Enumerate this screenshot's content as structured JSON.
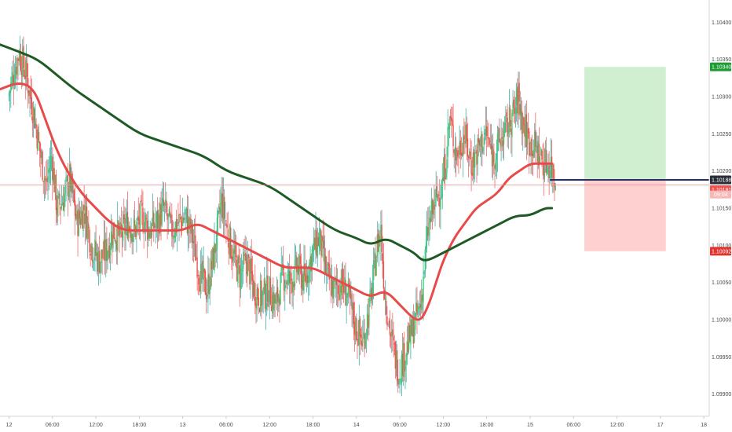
{
  "chart_data": {
    "type": "candlestick",
    "title": "",
    "xlabel": "",
    "ylabel": "",
    "colors": {
      "up": "#26a69a",
      "up_body": "#3fcf6c",
      "down": "#ef5350",
      "ma_fast": "#e84a4a",
      "ma_slow": "#1e5a24",
      "target_zone": "#c8ecc8",
      "stop_zone": "#ffc8c8",
      "entry_line": "#2a2e5c",
      "price_line": "#f08a8a",
      "target_tag": "#1e9a32",
      "stop_tag": "#e0342f",
      "entry_tag": "#2a2e39",
      "last_tag": "#ef5350"
    },
    "y_axis": {
      "ylim": [
        1.0987,
        1.1043
      ],
      "ticks": [
        "1.10400",
        "1.10350",
        "1.10300",
        "1.10250",
        "1.10200",
        "1.10150",
        "1.10100",
        "1.10050",
        "1.10000",
        "1.09950",
        "1.09900"
      ]
    },
    "x_axis": {
      "ticks": [
        {
          "label": "12",
          "x": 0
        },
        {
          "label": "06:00",
          "x": 24
        },
        {
          "label": "12:00",
          "x": 48
        },
        {
          "label": "18:00",
          "x": 72
        },
        {
          "label": "13",
          "x": 96
        },
        {
          "label": "06:00",
          "x": 120
        },
        {
          "label": "12:00",
          "x": 144
        },
        {
          "label": "18:00",
          "x": 168
        },
        {
          "label": "14",
          "x": 192
        },
        {
          "label": "06:00",
          "x": 216
        },
        {
          "label": "12:00",
          "x": 240
        },
        {
          "label": "18:00",
          "x": 264
        },
        {
          "label": "15",
          "x": 288
        },
        {
          "label": "06:00",
          "x": 312
        },
        {
          "label": "12:00",
          "x": 336
        },
        {
          "label": "17",
          "x": 360
        },
        {
          "label": "18",
          "x": 384
        }
      ],
      "xlim": [
        -5,
        387
      ]
    },
    "price_path": [
      [
        0,
        1.103
      ],
      [
        3,
        1.1033
      ],
      [
        6,
        1.1036
      ],
      [
        10,
        1.1033
      ],
      [
        14,
        1.1028
      ],
      [
        18,
        1.1022
      ],
      [
        21,
        1.1018
      ],
      [
        24,
        1.1022
      ],
      [
        27,
        1.1015
      ],
      [
        30,
        1.1016
      ],
      [
        34,
        1.1019
      ],
      [
        38,
        1.1013
      ],
      [
        42,
        1.1015
      ],
      [
        46,
        1.101
      ],
      [
        50,
        1.1008
      ],
      [
        54,
        1.1009
      ],
      [
        58,
        1.1012
      ],
      [
        62,
        1.1011
      ],
      [
        66,
        1.1013
      ],
      [
        70,
        1.1012
      ],
      [
        74,
        1.1014
      ],
      [
        78,
        1.1012
      ],
      [
        82,
        1.1013
      ],
      [
        86,
        1.1015
      ],
      [
        90,
        1.1012
      ],
      [
        94,
        1.1013
      ],
      [
        98,
        1.1014
      ],
      [
        102,
        1.1011
      ],
      [
        106,
        1.1006
      ],
      [
        110,
        1.1004
      ],
      [
        114,
        1.1009
      ],
      [
        118,
        1.1016
      ],
      [
        121,
        1.1012
      ],
      [
        124,
        1.1009
      ],
      [
        128,
        1.1006
      ],
      [
        132,
        1.1008
      ],
      [
        136,
        1.1004
      ],
      [
        140,
        1.1003
      ],
      [
        144,
        1.1004
      ],
      [
        148,
        1.1002
      ],
      [
        152,
        1.1006
      ],
      [
        156,
        1.1005
      ],
      [
        160,
        1.1007
      ],
      [
        164,
        1.1005
      ],
      [
        168,
        1.1009
      ],
      [
        172,
        1.1011
      ],
      [
        176,
        1.1006
      ],
      [
        180,
        1.1004
      ],
      [
        184,
        1.1005
      ],
      [
        188,
        1.1003
      ],
      [
        192,
        1.0999
      ],
      [
        196,
        1.0997
      ],
      [
        200,
        1.1002
      ],
      [
        204,
        1.101
      ],
      [
        206,
        1.1012
      ],
      [
        208,
        1.1004
      ],
      [
        212,
        1.0997
      ],
      [
        216,
        1.0993
      ],
      [
        220,
        1.0996
      ],
      [
        224,
        1.0999
      ],
      [
        228,
        1.1002
      ],
      [
        232,
        1.1012
      ],
      [
        236,
        1.1016
      ],
      [
        240,
        1.1018
      ],
      [
        242,
        1.1022
      ],
      [
        244,
        1.1027
      ],
      [
        248,
        1.1022
      ],
      [
        252,
        1.1025
      ],
      [
        256,
        1.1021
      ],
      [
        260,
        1.1023
      ],
      [
        264,
        1.1025
      ],
      [
        268,
        1.1022
      ],
      [
        272,
        1.1024
      ],
      [
        276,
        1.1026
      ],
      [
        280,
        1.1028
      ],
      [
        282,
        1.103
      ],
      [
        284,
        1.1027
      ],
      [
        288,
        1.1024
      ],
      [
        292,
        1.1023
      ],
      [
        296,
        1.1021
      ],
      [
        300,
        1.1021
      ],
      [
        302,
        1.10188
      ]
    ],
    "series": [
      {
        "type": "line",
        "points": [
          [
            -5,
            1.1031
          ],
          [
            6,
            1.1032
          ],
          [
            14,
            1.1031
          ],
          [
            20,
            1.1027
          ],
          [
            26,
            1.1023
          ],
          [
            32,
            1.102
          ],
          [
            40,
            1.1017
          ],
          [
            48,
            1.1015
          ],
          [
            56,
            1.1013
          ],
          [
            64,
            1.1012
          ],
          [
            72,
            1.1012
          ],
          [
            80,
            1.1012
          ],
          [
            88,
            1.1012
          ],
          [
            96,
            1.1012
          ],
          [
            104,
            1.1013
          ],
          [
            112,
            1.1012
          ],
          [
            120,
            1.1011
          ],
          [
            128,
            1.101
          ],
          [
            136,
            1.1009
          ],
          [
            144,
            1.1008
          ],
          [
            152,
            1.1007
          ],
          [
            160,
            1.1007
          ],
          [
            168,
            1.1007
          ],
          [
            176,
            1.1006
          ],
          [
            184,
            1.1005
          ],
          [
            192,
            1.1004
          ],
          [
            200,
            1.1003
          ],
          [
            208,
            1.1004
          ],
          [
            216,
            1.1002
          ],
          [
            224,
            1.1
          ],
          [
            228,
            1.1
          ],
          [
            232,
            1.1002
          ],
          [
            236,
            1.1005
          ],
          [
            240,
            1.1008
          ],
          [
            246,
            1.1011
          ],
          [
            252,
            1.1013
          ],
          [
            258,
            1.1015
          ],
          [
            264,
            1.1016
          ],
          [
            270,
            1.1017
          ],
          [
            276,
            1.1019
          ],
          [
            282,
            1.102
          ],
          [
            288,
            1.1021
          ],
          [
            294,
            1.1021
          ],
          [
            300,
            1.1021
          ]
        ]
      },
      {
        "type": "line",
        "points": [
          [
            -5,
            1.1037
          ],
          [
            6,
            1.1036
          ],
          [
            16,
            1.1035
          ],
          [
            26,
            1.1033
          ],
          [
            36,
            1.1031
          ],
          [
            48,
            1.1029
          ],
          [
            60,
            1.1027
          ],
          [
            72,
            1.1025
          ],
          [
            84,
            1.1024
          ],
          [
            96,
            1.1023
          ],
          [
            108,
            1.1022
          ],
          [
            120,
            1.102
          ],
          [
            132,
            1.1019
          ],
          [
            144,
            1.1018
          ],
          [
            156,
            1.1016
          ],
          [
            168,
            1.1014
          ],
          [
            180,
            1.1012
          ],
          [
            192,
            1.1011
          ],
          [
            200,
            1.101
          ],
          [
            208,
            1.1011
          ],
          [
            216,
            1.101
          ],
          [
            224,
            1.1009
          ],
          [
            228,
            1.1008
          ],
          [
            232,
            1.1008
          ],
          [
            240,
            1.1009
          ],
          [
            248,
            1.101
          ],
          [
            256,
            1.1011
          ],
          [
            264,
            1.1012
          ],
          [
            272,
            1.1013
          ],
          [
            280,
            1.1014
          ],
          [
            288,
            1.1014
          ],
          [
            296,
            1.1015
          ],
          [
            300,
            1.1015
          ]
        ]
      }
    ],
    "position": {
      "entry": 1.10188,
      "target": 1.1034,
      "stop": 1.10092,
      "x_start": 318,
      "x_end": 363
    },
    "entry_line": {
      "x_start": 299,
      "x_end": 387,
      "y": 1.10188
    },
    "current_price_line": 1.10181,
    "price_tags": {
      "target": "1.10340",
      "entry": "1.10188",
      "last": "1.10181",
      "countdown": "09:04",
      "stop": "1.10092"
    }
  }
}
